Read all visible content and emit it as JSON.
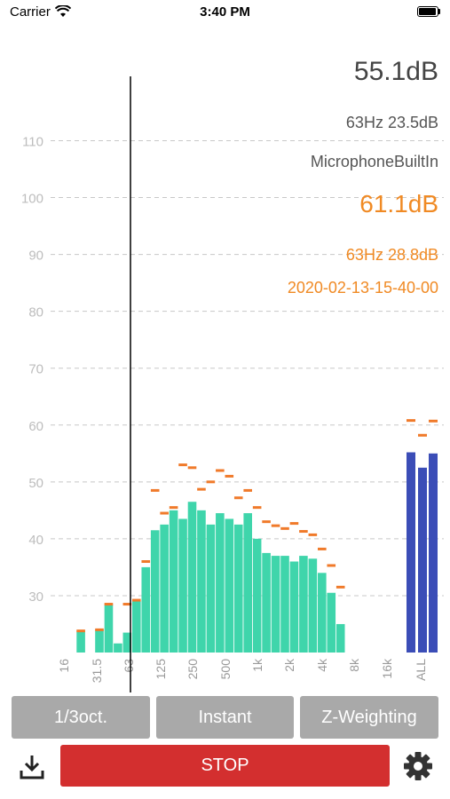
{
  "status_bar": {
    "carrier": "Carrier",
    "time": "3:40 PM"
  },
  "readouts": {
    "level": "55.1dB",
    "peak_band": "63Hz 23.5dB",
    "source": "MicrophoneBuiltIn",
    "max_level": "61.1dB",
    "max_band": "63Hz 28.8dB",
    "timestamp": "2020-02-13-15-40-00"
  },
  "controls": {
    "band_mode": "1/3oct.",
    "time_mode": "Instant",
    "weighting": "Z-Weighting",
    "stop_label": "STOP"
  },
  "icons": {
    "download": "download-icon",
    "settings": "gear-icon",
    "wifi": "wifi-icon",
    "battery": "battery-icon"
  },
  "colors": {
    "bar": "#3fd5ab",
    "peak": "#f07a2a",
    "overall": "#3b4db7",
    "stop": "#d32f2f",
    "button": "#a9a9a9",
    "max_text": "#f08a24"
  },
  "chart_data": {
    "type": "bar",
    "y_ticks": [
      30,
      40,
      50,
      60,
      70,
      80,
      90,
      100,
      110
    ],
    "ylim": [
      20,
      116
    ],
    "x_labels": [
      "16",
      "31.5",
      "63",
      "125",
      "250",
      "500",
      "1k",
      "2k",
      "4k",
      "8k",
      "16k",
      "ALL"
    ],
    "cursor_band": 63,
    "bands": [
      {
        "values": [
          null,
          23.8,
          null,
          24,
          28.5
        ],
        "peak_values": [
          null,
          23.8,
          null,
          24,
          28.5
        ]
      },
      {
        "values": [
          21.6,
          23.5,
          29,
          35,
          41.5,
          42.5,
          45,
          43.5,
          46.5,
          45,
          42.5,
          44.5,
          43.5,
          42.5,
          44.5,
          40,
          37.5,
          37,
          37,
          36,
          37,
          36.5,
          34,
          30.5,
          25
        ],
        "peak_values": [
          null,
          28.5,
          29.2,
          36,
          48.5,
          44.5,
          45.5,
          53,
          52.5,
          48.7,
          50,
          52,
          51,
          47.2,
          48.5,
          45.5,
          43,
          42.3,
          41.8,
          42.7,
          41.3,
          40.7,
          38.2,
          35.3,
          31.5
        ]
      }
    ],
    "overall": {
      "values": [
        55.2,
        52.5,
        55
      ],
      "peak_values": [
        60.8,
        58.2,
        60.7
      ]
    }
  }
}
